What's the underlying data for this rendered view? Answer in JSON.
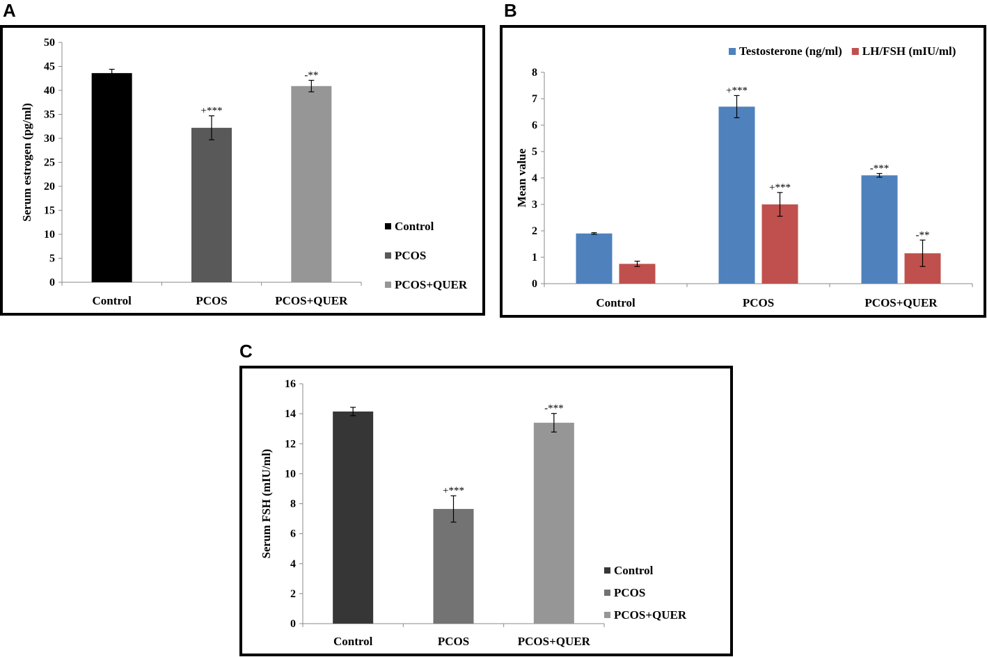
{
  "panels": {
    "a": "A",
    "b": "B",
    "c": "C"
  },
  "chart_data": [
    {
      "panel": "A",
      "type": "bar",
      "categories": [
        "Control",
        "PCOS",
        "PCOS+QUER"
      ],
      "values": [
        43.6,
        32.2,
        40.9
      ],
      "errors": [
        0.8,
        2.5,
        1.2
      ],
      "annotations": [
        "",
        "+***",
        "-**"
      ],
      "colors": [
        "#000000",
        "#595959",
        "#969696"
      ],
      "legend": [
        "Control",
        "PCOS",
        "PCOS+QUER"
      ],
      "ylabel": "Serum estrogen (pg/ml)",
      "xlabel": "",
      "ylim": [
        0,
        50
      ],
      "yticks": [
        0,
        5,
        10,
        15,
        20,
        25,
        30,
        35,
        40,
        45,
        50
      ],
      "legend_position": "right"
    },
    {
      "panel": "B",
      "type": "bar",
      "categories": [
        "Control",
        "PCOS",
        "PCOS+QUER"
      ],
      "series": [
        {
          "name": "Testosterone (ng/ml)",
          "values": [
            1.9,
            6.7,
            4.1
          ],
          "errors": [
            0.03,
            0.42,
            0.07
          ],
          "annotations": [
            "",
            "+***",
            "-***"
          ],
          "color": "#4F81BD"
        },
        {
          "name": "LH/FSH (mIU/ml)",
          "values": [
            0.75,
            3.0,
            1.15
          ],
          "errors": [
            0.1,
            0.45,
            0.5
          ],
          "annotations": [
            "",
            "+***",
            "-**"
          ],
          "color": "#C0504D"
        }
      ],
      "ylabel": "Mean value",
      "xlabel": "",
      "ylim": [
        0,
        8
      ],
      "yticks": [
        0,
        1,
        2,
        3,
        4,
        5,
        6,
        7,
        8
      ],
      "legend_position": "top-right"
    },
    {
      "panel": "C",
      "type": "bar",
      "categories": [
        "Control",
        "PCOS",
        "PCOS+QUER"
      ],
      "values": [
        14.15,
        7.65,
        13.4
      ],
      "errors": [
        0.28,
        0.88,
        0.62
      ],
      "annotations": [
        "",
        "+***",
        "-***"
      ],
      "colors": [
        "#363636",
        "#737373",
        "#969696"
      ],
      "legend": [
        "Control",
        "PCOS",
        "PCOS+QUER"
      ],
      "ylabel": "Serum FSH (mIU/ml)",
      "xlabel": "",
      "ylim": [
        0,
        16
      ],
      "yticks": [
        0,
        2,
        4,
        6,
        8,
        10,
        12,
        14,
        16
      ],
      "legend_position": "right"
    }
  ]
}
